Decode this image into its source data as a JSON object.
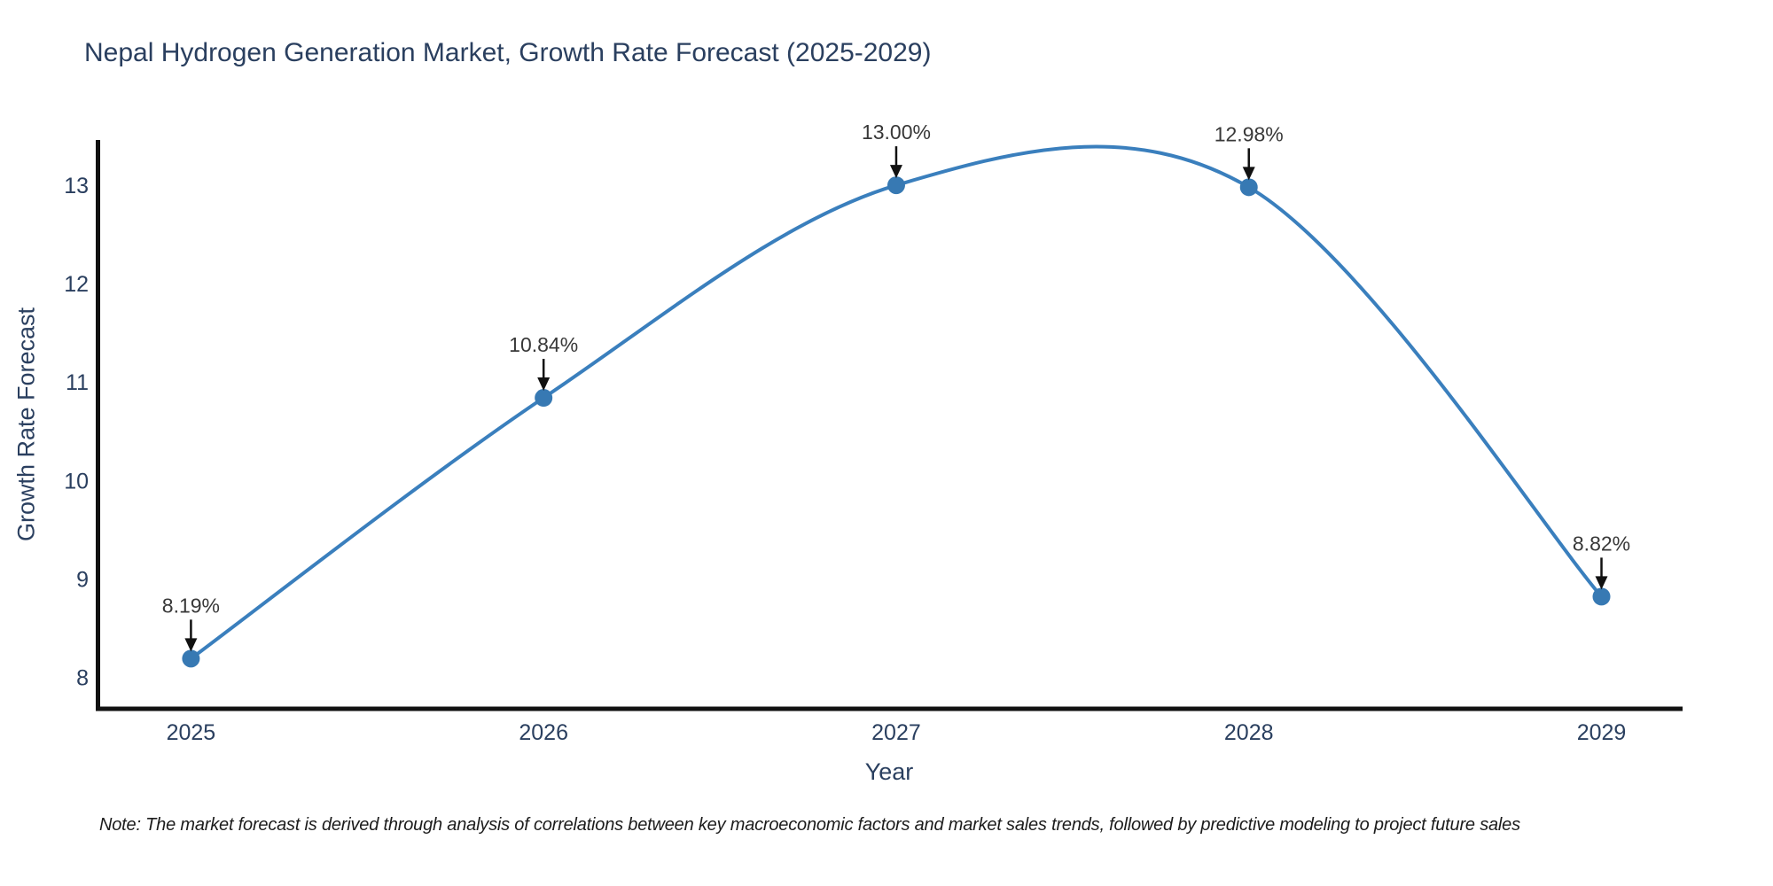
{
  "chart_data": {
    "type": "line",
    "line_shape": "spline",
    "title": "Nepal Hydrogen Generation Market, Growth Rate Forecast (2025-2029)",
    "xlabel": "Year",
    "ylabel": "Growth Rate Forecast",
    "x": [
      2025,
      2026,
      2027,
      2028,
      2029
    ],
    "series": [
      {
        "name": "Growth Rate Forecast",
        "values": [
          8.19,
          10.84,
          13.0,
          12.98,
          8.82
        ]
      }
    ],
    "point_labels": [
      "8.19%",
      "10.84%",
      "13.00%",
      "12.98%",
      "8.82%"
    ],
    "xticks": [
      2025,
      2026,
      2027,
      2028,
      2029
    ],
    "yticks": [
      8,
      9,
      10,
      11,
      12,
      13
    ],
    "xlim": [
      2024.73,
      2029.23
    ],
    "ylim": [
      7.68,
      13.46
    ],
    "grid": false,
    "legend": false,
    "annotation_arrows": "black arrows pointing down at each marker"
  },
  "note": {
    "text": "Note: The market forecast is derived through analysis of correlations between key macroeconomic factors and market sales trends, followed by predictive modeling to project future sales"
  },
  "colors": {
    "line": "#3a7fbd",
    "marker": "#3779b3",
    "axis": "#111111",
    "heading_text": "#2a3f5f",
    "tick_text": "#2a3f5f",
    "annotation_text": "#383838",
    "arrow": "#111111",
    "background": "#ffffff"
  }
}
